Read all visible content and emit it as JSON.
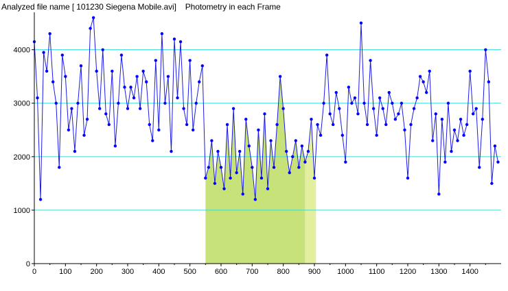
{
  "window": {
    "file_label": "Analyzed file name [ 101230 Siegena Mobile.avi]",
    "mode_label": "Photometry in each Frame"
  },
  "colors": {
    "series": "#1a1ae6",
    "point": "#0000ff",
    "gridline": "#33dddd",
    "highlight_main": "#c8e27a",
    "highlight_edge": "#e3ef9e",
    "axis": "#000000"
  },
  "chart_data": {
    "type": "scatter",
    "title": "",
    "xlabel": "",
    "ylabel": "",
    "xlim": [
      0,
      1500
    ],
    "ylim": [
      0,
      4700
    ],
    "x_ticks": [
      0,
      100,
      200,
      300,
      400,
      500,
      600,
      700,
      800,
      900,
      1000,
      1100,
      1200,
      1300,
      1400
    ],
    "y_ticks": [
      0,
      1000,
      2000,
      3000,
      4000
    ],
    "grid": "horizontal",
    "highlighted_range": {
      "from": 550,
      "to": 905,
      "outlier_band_from": 870
    },
    "series": [
      {
        "x": [
          0,
          10,
          20,
          30,
          40,
          50,
          60,
          70,
          80,
          90,
          100,
          110,
          120,
          130,
          140,
          150,
          160,
          170,
          180,
          190,
          200,
          210,
          220,
          230,
          240,
          250,
          260,
          270,
          280,
          290,
          300,
          310,
          320,
          330,
          340,
          350,
          360,
          370,
          380,
          390,
          400,
          410,
          420,
          430,
          440,
          450,
          460,
          470,
          480,
          490,
          500,
          510,
          520,
          530,
          540,
          550,
          560,
          570,
          580,
          590,
          600,
          610,
          620,
          630,
          640,
          650,
          660,
          670,
          680,
          690,
          700,
          710,
          720,
          730,
          740,
          750,
          760,
          770,
          780,
          790,
          800,
          810,
          820,
          830,
          840,
          850,
          860,
          870,
          880,
          890,
          900,
          910,
          920,
          930,
          940,
          950,
          960,
          970,
          980,
          990,
          1000,
          1010,
          1020,
          1030,
          1040,
          1050,
          1060,
          1070,
          1080,
          1090,
          1100,
          1110,
          1120,
          1130,
          1140,
          1150,
          1160,
          1170,
          1180,
          1190,
          1200,
          1210,
          1220,
          1230,
          1240,
          1250,
          1260,
          1270,
          1280,
          1290,
          1300,
          1310,
          1320,
          1330,
          1340,
          1350,
          1360,
          1370,
          1380,
          1390,
          1400,
          1410,
          1420,
          1430,
          1440,
          1450,
          1460,
          1470,
          1480,
          1490
        ],
        "y": [
          4150,
          3100,
          1200,
          3950,
          3600,
          4300,
          3400,
          3000,
          1800,
          3900,
          3500,
          2500,
          2900,
          2100,
          3000,
          3700,
          2400,
          2700,
          4400,
          4600,
          3600,
          2900,
          4000,
          2800,
          2600,
          3600,
          2200,
          3000,
          3900,
          3300,
          2900,
          3300,
          3100,
          3500,
          2900,
          3600,
          3400,
          2600,
          2300,
          3800,
          2500,
          4300,
          3000,
          3500,
          2100,
          4200,
          3100,
          4150,
          2900,
          2600,
          3800,
          2500,
          3000,
          3400,
          3700,
          1600,
          1800,
          2300,
          1500,
          2100,
          1800,
          1400,
          2600,
          1600,
          2900,
          1700,
          2100,
          1300,
          2700,
          2200,
          1800,
          1200,
          2500,
          1600,
          2800,
          1400,
          2300,
          1800,
          2600,
          3500,
          2900,
          2100,
          1700,
          2000,
          2300,
          1800,
          2200,
          1900,
          2100,
          2700,
          1600,
          2600,
          2400,
          3000,
          3900,
          2800,
          2600,
          3200,
          2900,
          2400,
          1900,
          3300,
          3000,
          3100,
          2800,
          4500,
          3000,
          2600,
          3800,
          2900,
          2400,
          3100,
          2900,
          2600,
          3200,
          3000,
          2700,
          2800,
          3000,
          2500,
          1600,
          2600,
          2900,
          3100,
          3500,
          3400,
          3200,
          3600,
          2300,
          2800,
          1300,
          2700,
          1900,
          3000,
          2100,
          2500,
          2300,
          2700,
          2400,
          2600,
          3600,
          2800,
          2900,
          1800,
          2700,
          4000,
          3400,
          1500,
          2200,
          1900
        ]
      }
    ]
  }
}
